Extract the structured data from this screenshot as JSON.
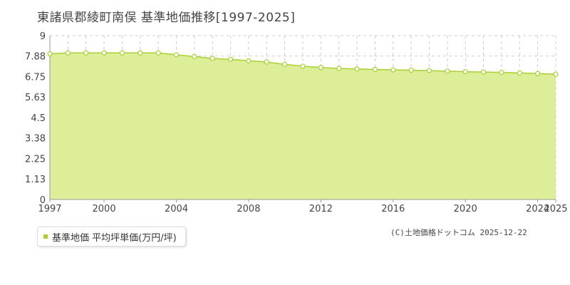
{
  "title": "東諸県郡綾町南俣 基準地価推移[1997-2025]",
  "legend_label": "基準地価 平均坪単価(万円/坪)",
  "credit": "(C)土地価格ドットコム 2025-12-22",
  "colors": {
    "line": "#a8d030",
    "fill": "#dcee98",
    "grid": "#cccccc",
    "marker_stroke": "#a8d030",
    "marker_fill": "#ffffff",
    "axis_text": "#444444",
    "highlight_line": "#bbbbbb"
  },
  "chart_data": {
    "type": "area",
    "title": "東諸県郡綾町南俣 基準地価推移[1997-2025]",
    "xlabel": "",
    "ylabel": "",
    "xlim": [
      1997,
      2025
    ],
    "ylim": [
      0,
      9
    ],
    "x_tick_labels": [
      "1997",
      "2000",
      "2004",
      "2008",
      "2012",
      "2016",
      "2020",
      "2024",
      "2025"
    ],
    "y_tick_labels": [
      "0",
      "1.13",
      "2.25",
      "3.38",
      "4.5",
      "5.63",
      "6.75",
      "7.88",
      "9"
    ],
    "y_tick_values": [
      0,
      1.13,
      2.25,
      3.38,
      4.5,
      5.63,
      6.75,
      7.88,
      9
    ],
    "grid": true,
    "legend_position": "bottom-left",
    "series": [
      {
        "name": "基準地価 平均坪単価(万円/坪)",
        "x": [
          1997,
          1998,
          1999,
          2000,
          2001,
          2002,
          2003,
          2004,
          2005,
          2006,
          2007,
          2008,
          2009,
          2010,
          2011,
          2012,
          2013,
          2014,
          2015,
          2016,
          2017,
          2018,
          2019,
          2020,
          2021,
          2022,
          2023,
          2024,
          2025
        ],
        "values": [
          8.0,
          8.05,
          8.05,
          8.05,
          8.05,
          8.05,
          8.05,
          7.95,
          7.85,
          7.75,
          7.7,
          7.62,
          7.55,
          7.42,
          7.32,
          7.25,
          7.2,
          7.17,
          7.14,
          7.12,
          7.1,
          7.08,
          7.05,
          7.02,
          7.0,
          6.98,
          6.95,
          6.92,
          6.88
        ]
      }
    ]
  }
}
